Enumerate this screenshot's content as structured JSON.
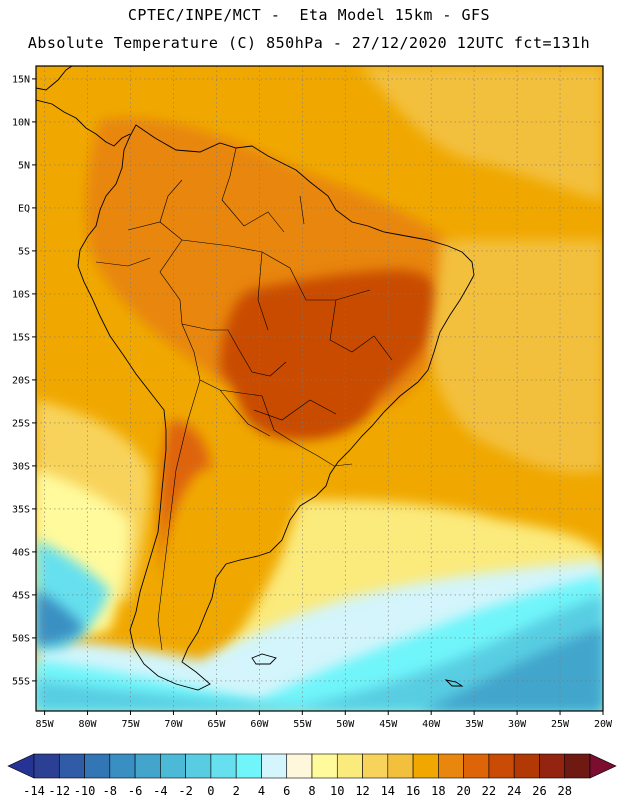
{
  "header": {
    "line1": "CPTEC/INPE/MCT -  Eta Model 15km - GFS",
    "line2": "Absolute Temperature (C) 850hPa - 27/12/2020 12UTC fct=131h"
  },
  "map": {
    "lon_range": [
      -86,
      -20
    ],
    "lat_range": [
      -58.5,
      16.5
    ],
    "lat_labels": [
      {
        "lat": 15,
        "label": "15N"
      },
      {
        "lat": 10,
        "label": "10N"
      },
      {
        "lat": 5,
        "label": "5N"
      },
      {
        "lat": 0,
        "label": "EQ"
      },
      {
        "lat": -5,
        "label": "5S"
      },
      {
        "lat": -10,
        "label": "10S"
      },
      {
        "lat": -15,
        "label": "15S"
      },
      {
        "lat": -20,
        "label": "20S"
      },
      {
        "lat": -25,
        "label": "25S"
      },
      {
        "lat": -30,
        "label": "30S"
      },
      {
        "lat": -35,
        "label": "35S"
      },
      {
        "lat": -40,
        "label": "40S"
      },
      {
        "lat": -45,
        "label": "45S"
      },
      {
        "lat": -50,
        "label": "50S"
      },
      {
        "lat": -55,
        "label": "55S"
      }
    ],
    "lon_labels": [
      {
        "lon": -85,
        "label": "85W"
      },
      {
        "lon": -80,
        "label": "80W"
      },
      {
        "lon": -75,
        "label": "75W"
      },
      {
        "lon": -70,
        "label": "70W"
      },
      {
        "lon": -65,
        "label": "65W"
      },
      {
        "lon": -60,
        "label": "60W"
      },
      {
        "lon": -55,
        "label": "55W"
      },
      {
        "lon": -50,
        "label": "50W"
      },
      {
        "lon": -45,
        "label": "45W"
      },
      {
        "lon": -40,
        "label": "40W"
      },
      {
        "lon": -35,
        "label": "35W"
      },
      {
        "lon": -30,
        "label": "30W"
      },
      {
        "lon": -25,
        "label": "25W"
      },
      {
        "lon": -20,
        "label": "20W"
      }
    ]
  },
  "colorbar": {
    "labels": [
      "-14",
      "-12",
      "-10",
      "-8",
      "-6",
      "-4",
      "-2",
      "0",
      "2",
      "4",
      "6",
      "8",
      "10",
      "12",
      "14",
      "16",
      "18",
      "20",
      "22",
      "24",
      "26",
      "28"
    ],
    "colors": [
      "#2b3f95",
      "#2f5ba7",
      "#3276b5",
      "#3a8fc2",
      "#43a5cc",
      "#4cbad6",
      "#58cde2",
      "#66e0ee",
      "#6ff5fa",
      "#d3f5fb",
      "#fff7dc",
      "#fffa9c",
      "#fbea7c",
      "#f8d35c",
      "#f3c03e",
      "#f0a800",
      "#e8860e",
      "#de6408",
      "#c94b06",
      "#b23905",
      "#922410",
      "#6e1a12"
    ],
    "low_color": "#253494",
    "high_color": "#7a0d30"
  },
  "chart_data": {
    "type": "heatmap",
    "title": "Absolute Temperature (C) 850hPa",
    "subtitle": "CPTEC/INPE/MCT - Eta Model 15km - GFS, 27/12/2020 12UTC fct=131h",
    "variable": "temperature at 850 hPa",
    "units": "C",
    "x": "longitude 85W to 20W",
    "y": "latitude 15N to 55S",
    "scale_min": -14,
    "scale_max": 28,
    "regions": [
      {
        "name": "background",
        "value": 17
      },
      {
        "name": "northeast-ocean",
        "value": 15
      },
      {
        "name": "northern-land",
        "value": 18.5
      },
      {
        "name": "central-brazil-hot",
        "value": 22.5
      },
      {
        "name": "southern-brazil-hot",
        "value": 22
      },
      {
        "name": "andes-argentina-hot",
        "value": 21
      },
      {
        "name": "argentina-mid",
        "value": 17
      },
      {
        "name": "south-atlantic-warm",
        "value": 15
      },
      {
        "name": "pacific-subtropical",
        "value": 12
      },
      {
        "name": "south-atlantic-mild",
        "value": 11
      },
      {
        "name": "pacific-cool",
        "value": 9
      },
      {
        "name": "southern-cool",
        "value": 5
      },
      {
        "name": "southern-cold",
        "value": 2
      },
      {
        "name": "southern-colder",
        "value": -1
      },
      {
        "name": "southern-coldest",
        "value": -6
      },
      {
        "name": "pacific-cold",
        "value": 1
      },
      {
        "name": "pacific-coldest",
        "value": -8
      }
    ]
  }
}
